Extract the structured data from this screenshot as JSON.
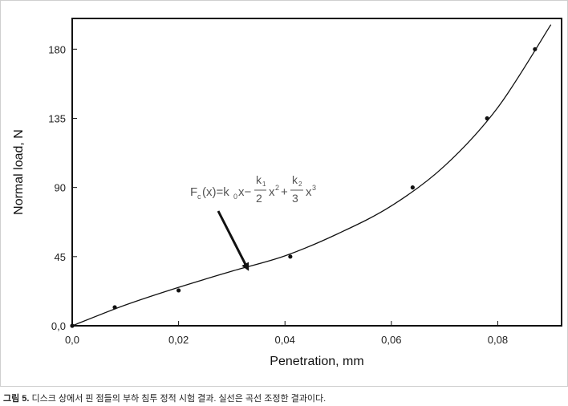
{
  "chart_data": {
    "type": "scatter",
    "title": "",
    "xlabel": "Penetration, mm",
    "ylabel": "Normal load, N",
    "xlim": [
      0,
      0.092
    ],
    "ylim": [
      0,
      200
    ],
    "x_ticks": [
      0.0,
      0.02,
      0.04,
      0.06,
      0.08
    ],
    "x_tick_labels": [
      "0,0",
      "0,02",
      "0,04",
      "0,06",
      "0,08"
    ],
    "y_ticks": [
      0,
      45,
      90,
      135,
      180
    ],
    "y_tick_labels": [
      "0,0",
      "45",
      "90",
      "135",
      "180"
    ],
    "grid": false,
    "series": [
      {
        "kind": "points",
        "x": [
          0.0,
          0.008,
          0.02,
          0.041,
          0.064,
          0.078,
          0.087
        ],
        "y": [
          0,
          12,
          23,
          45,
          90,
          135,
          180
        ]
      },
      {
        "kind": "fitted-curve",
        "x": [
          0.0,
          0.01,
          0.02,
          0.03,
          0.04,
          0.05,
          0.06,
          0.07,
          0.08,
          0.09
        ],
        "y": [
          0,
          13.5,
          25,
          35.5,
          45.5,
          60,
          78,
          104,
          142,
          196
        ]
      }
    ],
    "annotation": {
      "equation": {
        "F": "F",
        "F_sub": "c",
        "lhs_rest": "(x)=k",
        "k0_sub": "0",
        "after_k0": "x−",
        "frac1_num": "k",
        "frac1_num_sub": "1",
        "frac1_den": "2",
        "x2": "x",
        "x2_sup": "2",
        "plus": "+",
        "frac2_num": "k",
        "frac2_num_sub": "2",
        "frac2_den": "3",
        "x3": "x",
        "x3_sup": "3"
      },
      "arrow_target": {
        "x": 0.033,
        "y": 36
      }
    }
  },
  "caption": {
    "label": "그림 5.",
    "text": " 디스크 상에서 핀 점들의 부하 침투 정적 시험 결과. 실선은 곡선 조정한 결과이다."
  }
}
